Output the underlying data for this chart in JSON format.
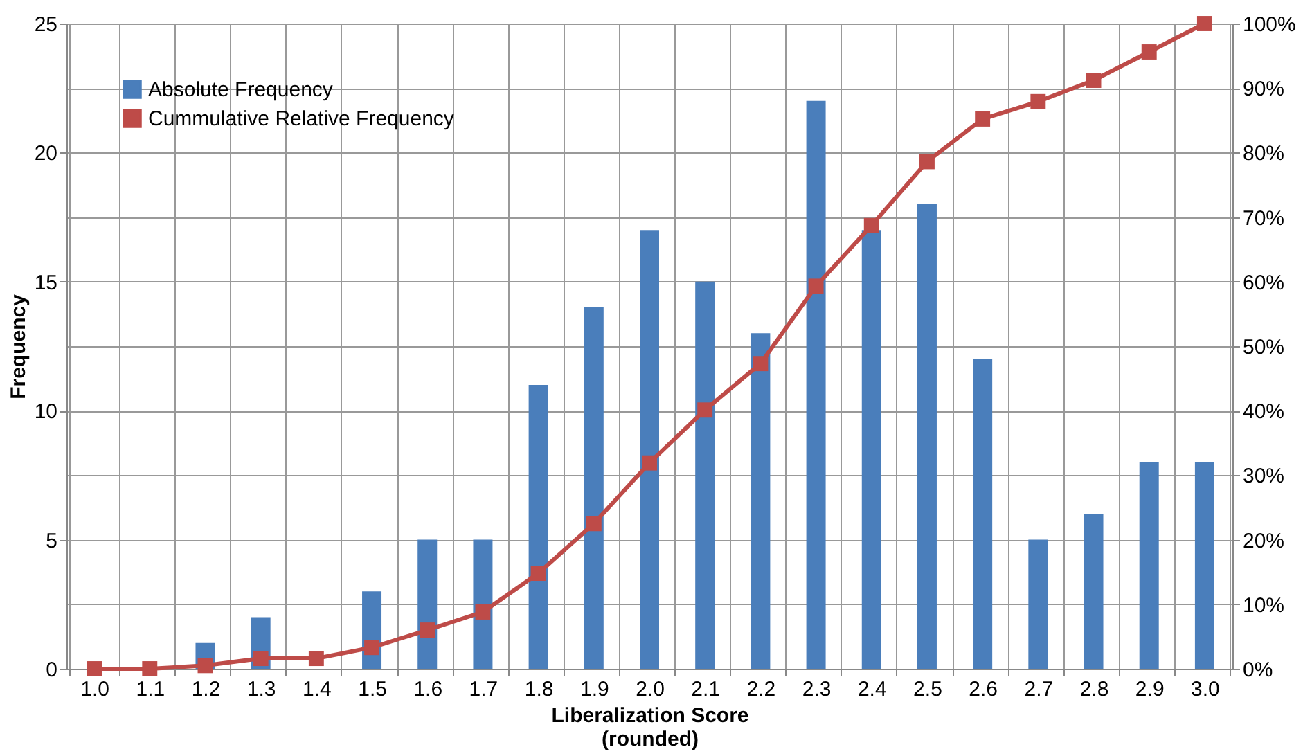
{
  "chart_data": {
    "type": "bar",
    "xlabel": "Liberalization Score\n(rounded)",
    "ylabel": "Frequency",
    "categories": [
      "1.0",
      "1.1",
      "1.2",
      "1.3",
      "1.4",
      "1.5",
      "1.6",
      "1.7",
      "1.8",
      "1.9",
      "2.0",
      "2.1",
      "2.2",
      "2.3",
      "2.4",
      "2.5",
      "2.6",
      "2.7",
      "2.8",
      "2.9",
      "3.0"
    ],
    "series": [
      {
        "name": "Absolute Frequency",
        "color": "#4a7ebb",
        "values": [
          0,
          0,
          1,
          2,
          0,
          3,
          5,
          5,
          11,
          14,
          17,
          15,
          13,
          22,
          17,
          18,
          12,
          5,
          6,
          8,
          8
        ]
      },
      {
        "name": "Cummulative Relative Frequency",
        "type": "line",
        "axis": "y2",
        "color": "#be4b48",
        "values": [
          0,
          0,
          0.5,
          1.6,
          1.6,
          3.3,
          6,
          8.8,
          14.8,
          22.5,
          31.9,
          40.1,
          47.3,
          59.3,
          68.7,
          78.6,
          85.2,
          87.9,
          91.2,
          95.6,
          100
        ]
      }
    ],
    "ylim": [
      0,
      25
    ],
    "yticks": [
      0,
      5,
      10,
      15,
      20,
      25
    ],
    "y2lim": [
      0,
      100
    ],
    "y2ticks": [
      {
        "value": 0,
        "label": "0%"
      },
      {
        "value": 10,
        "label": "10%"
      },
      {
        "value": 20,
        "label": "20%"
      },
      {
        "value": 30,
        "label": "30%"
      },
      {
        "value": 40,
        "label": "40%"
      },
      {
        "value": 50,
        "label": "50%"
      },
      {
        "value": 60,
        "label": "60%"
      },
      {
        "value": 70,
        "label": "70%"
      },
      {
        "value": 80,
        "label": "80%"
      },
      {
        "value": 90,
        "label": "90%"
      },
      {
        "value": 100,
        "label": "100%"
      }
    ],
    "marker": "square",
    "line_style": "solid",
    "grid": true,
    "legend": "top left"
  }
}
